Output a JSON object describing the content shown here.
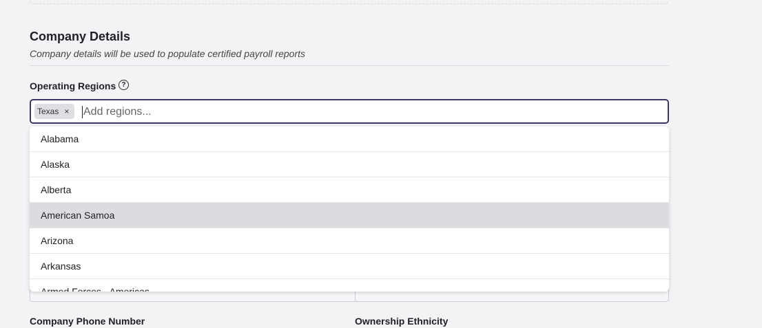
{
  "section": {
    "title": "Company Details",
    "subtitle": "Company details will be used to populate certified payroll reports"
  },
  "regions": {
    "label": "Operating Regions",
    "selected": [
      "Texas"
    ],
    "placeholder": "Add regions...",
    "options": [
      "Alabama",
      "Alaska",
      "Alberta",
      "American Samoa",
      "Arizona",
      "Arkansas",
      "Armed Forces - Americas"
    ],
    "highlighted": 3
  },
  "fields": [
    "Company Phone Number",
    "Ownership Ethnicity"
  ]
}
